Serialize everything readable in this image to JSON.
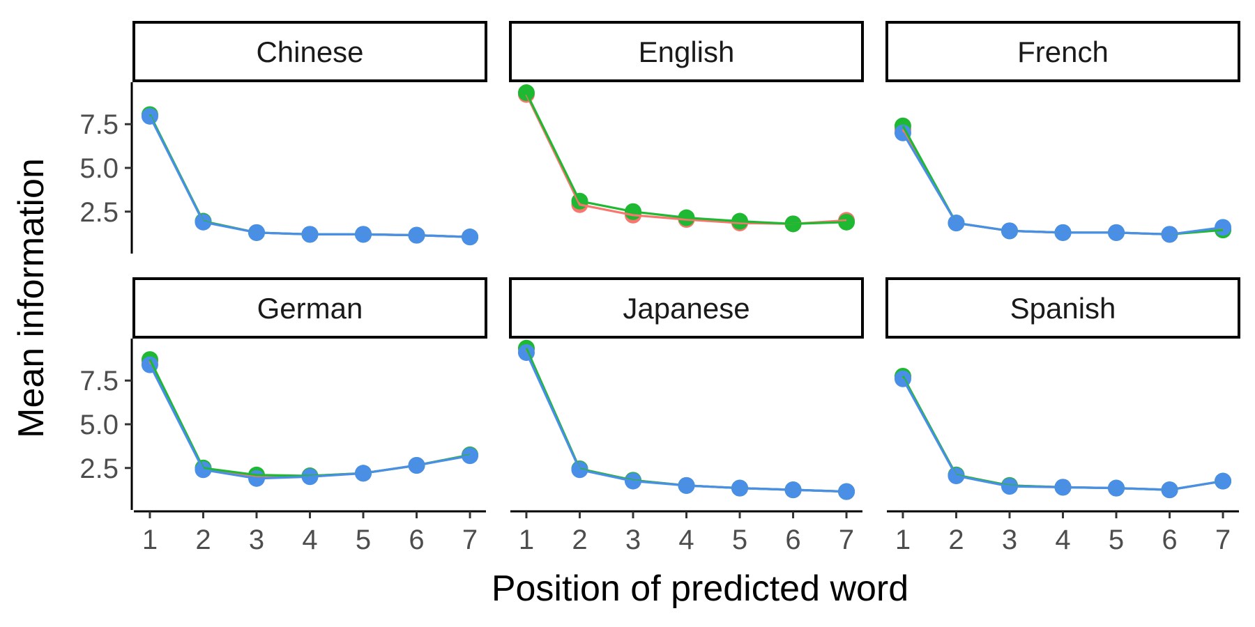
{
  "chart_data": {
    "type": "line",
    "xlabel": "Position of predicted word",
    "ylabel": "Mean information",
    "x": [
      1,
      2,
      3,
      4,
      5,
      6,
      7
    ],
    "xlim": [
      0.7,
      7.3
    ],
    "ylim": [
      0.1,
      9.9
    ],
    "yticks": [
      "2.5",
      "5.0",
      "7.5"
    ],
    "ytick_values": [
      2.5,
      5.0,
      7.5
    ],
    "series_colors": [
      "#F8766D",
      "#1FB832",
      "#4A8FE7"
    ],
    "facets": [
      {
        "name": "Chinese",
        "series": [
          {
            "color": "#F8766D",
            "values": [
              8.0,
              1.95,
              1.3,
              1.2,
              1.2,
              1.15,
              1.05
            ]
          },
          {
            "color": "#1FB832",
            "values": [
              8.05,
              1.95,
              1.3,
              1.2,
              1.2,
              1.15,
              1.05
            ]
          },
          {
            "color": "#4A8FE7",
            "values": [
              7.95,
              1.9,
              1.3,
              1.2,
              1.2,
              1.15,
              1.05
            ]
          }
        ]
      },
      {
        "name": "English",
        "series": [
          {
            "color": "#F8766D",
            "values": [
              9.2,
              2.9,
              2.3,
              2.05,
              1.85,
              1.8,
              2.0
            ]
          },
          {
            "color": "#1FB832",
            "values": [
              9.3,
              3.1,
              2.5,
              2.15,
              1.95,
              1.8,
              1.9
            ]
          },
          {
            "color": "#4A8FE7",
            "values": [
              null,
              null,
              null,
              null,
              null,
              null,
              null
            ]
          }
        ]
      },
      {
        "name": "French",
        "series": [
          {
            "color": "#F8766D",
            "values": [
              7.2,
              1.85,
              1.4,
              1.3,
              1.3,
              1.2,
              1.5
            ]
          },
          {
            "color": "#1FB832",
            "values": [
              7.4,
              1.85,
              1.4,
              1.3,
              1.3,
              1.2,
              1.45
            ]
          },
          {
            "color": "#4A8FE7",
            "values": [
              7.0,
              1.85,
              1.4,
              1.3,
              1.3,
              1.2,
              1.6
            ]
          }
        ]
      },
      {
        "name": "German",
        "series": [
          {
            "color": "#F8766D",
            "values": [
              8.6,
              2.45,
              2.05,
              2.05,
              2.2,
              2.65,
              3.25
            ]
          },
          {
            "color": "#1FB832",
            "values": [
              8.7,
              2.5,
              2.1,
              2.05,
              2.2,
              2.65,
              3.25
            ]
          },
          {
            "color": "#4A8FE7",
            "values": [
              8.4,
              2.4,
              1.9,
              2.0,
              2.2,
              2.65,
              3.2
            ]
          }
        ]
      },
      {
        "name": "Japanese",
        "series": [
          {
            "color": "#F8766D",
            "values": [
              9.3,
              2.45,
              1.8,
              1.5,
              1.35,
              1.25,
              1.15
            ]
          },
          {
            "color": "#1FB832",
            "values": [
              9.35,
              2.45,
              1.8,
              1.5,
              1.35,
              1.25,
              1.15
            ]
          },
          {
            "color": "#4A8FE7",
            "values": [
              9.1,
              2.4,
              1.75,
              1.5,
              1.35,
              1.25,
              1.15
            ]
          }
        ]
      },
      {
        "name": "Spanish",
        "series": [
          {
            "color": "#F8766D",
            "values": [
              7.7,
              2.1,
              1.5,
              1.4,
              1.35,
              1.25,
              1.75
            ]
          },
          {
            "color": "#1FB832",
            "values": [
              7.75,
              2.1,
              1.5,
              1.4,
              1.35,
              1.25,
              1.75
            ]
          },
          {
            "color": "#4A8FE7",
            "values": [
              7.6,
              2.05,
              1.45,
              1.4,
              1.35,
              1.25,
              1.75
            ]
          }
        ]
      }
    ]
  }
}
